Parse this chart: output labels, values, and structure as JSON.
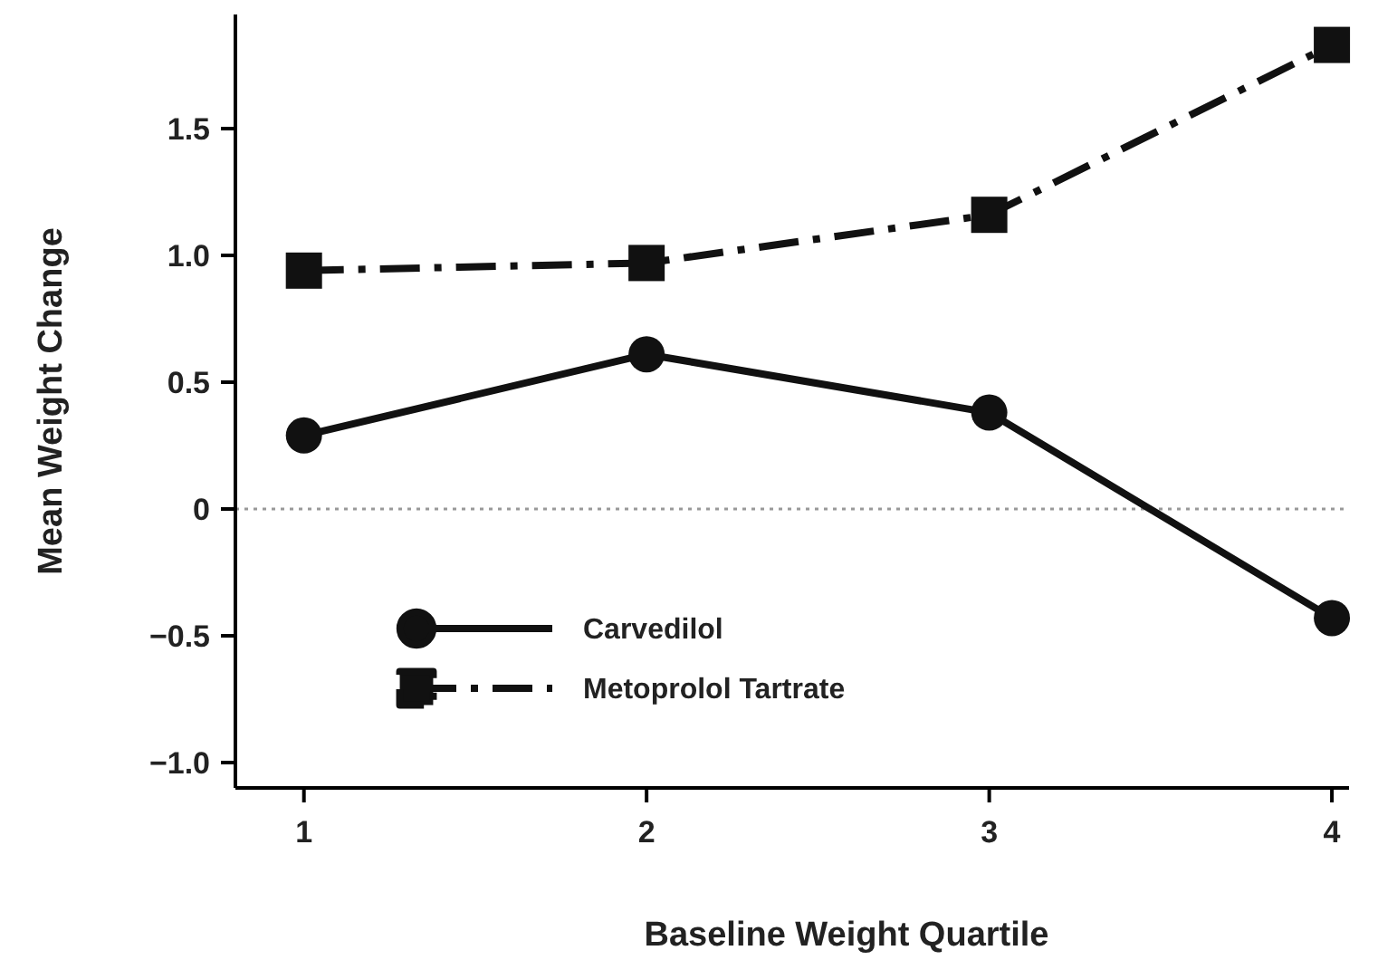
{
  "chart_data": {
    "type": "line",
    "xlabel": "Baseline Weight Quartile",
    "ylabel": "Mean Weight Change",
    "x": [
      1,
      2,
      3,
      4
    ],
    "xlim": [
      0.8,
      4.05
    ],
    "xticks": [
      1,
      2,
      3,
      4
    ],
    "ylim": [
      -1.1,
      1.95
    ],
    "yticks": [
      {
        "value": -1,
        "label": "−1.0"
      },
      {
        "value": -0.5,
        "label": "−0.5"
      },
      0,
      {
        "value": 0.5,
        "label": "0.5"
      },
      {
        "value": 1,
        "label": "1.0"
      },
      {
        "value": 1.5,
        "label": "1.5"
      }
    ],
    "series": [
      {
        "name": "Carvedilol",
        "color": "#111111",
        "values": [
          0.29,
          0.61,
          0.38,
          -0.43
        ],
        "marker": "circle",
        "line_style": "solid"
      },
      {
        "name": "Metoprolol Tartrate",
        "color": "#111111",
        "values": [
          0.94,
          0.97,
          1.16,
          1.83
        ],
        "marker": "square",
        "line_style": "dashed"
      }
    ],
    "ref_lines": [
      {
        "axis": "y",
        "value": 0,
        "color": "#999999",
        "line_style": "dotted"
      }
    ],
    "legend": "bottom left",
    "grid": false
  }
}
